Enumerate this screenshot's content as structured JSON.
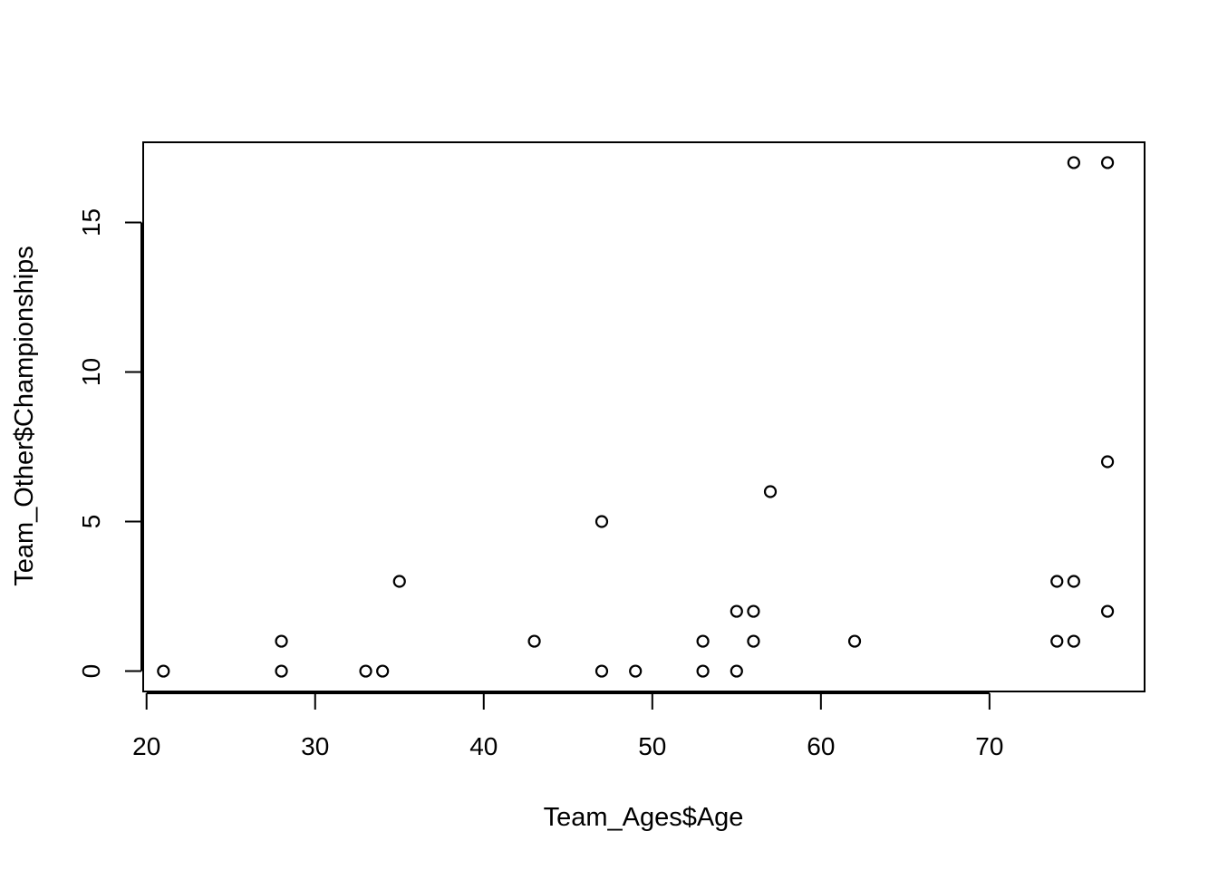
{
  "chart_data": {
    "type": "scatter",
    "title": "",
    "xlabel": "Team_Ages$Age",
    "ylabel": "Team_Other$Championships",
    "xlim": [
      19.8,
      79.2
    ],
    "ylim": [
      -0.68,
      17.68
    ],
    "xticks": [
      20,
      30,
      40,
      50,
      60,
      70
    ],
    "yticks": [
      0,
      5,
      10,
      15
    ],
    "grid": false,
    "legend": "none",
    "marker": "open-circle",
    "colors": {
      "marker": "#000000",
      "axis": "#000000",
      "background": "#ffffff"
    },
    "points": [
      {
        "x": 21,
        "y": 0
      },
      {
        "x": 28,
        "y": 1
      },
      {
        "x": 28,
        "y": 0
      },
      {
        "x": 33,
        "y": 0
      },
      {
        "x": 34,
        "y": 0
      },
      {
        "x": 35,
        "y": 3
      },
      {
        "x": 43,
        "y": 1
      },
      {
        "x": 47,
        "y": 5
      },
      {
        "x": 47,
        "y": 0
      },
      {
        "x": 49,
        "y": 0
      },
      {
        "x": 53,
        "y": 1
      },
      {
        "x": 53,
        "y": 0
      },
      {
        "x": 55,
        "y": 2
      },
      {
        "x": 55,
        "y": 0
      },
      {
        "x": 56,
        "y": 2
      },
      {
        "x": 56,
        "y": 1
      },
      {
        "x": 57,
        "y": 6
      },
      {
        "x": 62,
        "y": 1
      },
      {
        "x": 74,
        "y": 3
      },
      {
        "x": 74,
        "y": 1
      },
      {
        "x": 75,
        "y": 17
      },
      {
        "x": 75,
        "y": 3
      },
      {
        "x": 75,
        "y": 1
      },
      {
        "x": 77,
        "y": 17
      },
      {
        "x": 77,
        "y": 7
      },
      {
        "x": 77,
        "y": 2
      }
    ]
  }
}
